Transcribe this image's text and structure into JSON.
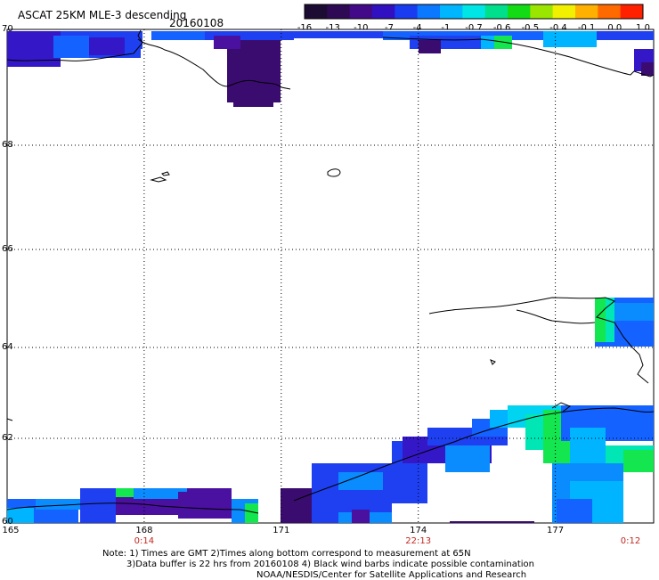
{
  "header": {
    "title": "ASCAT 25KM MLE-3 descending",
    "date": "20160108"
  },
  "colorbar": {
    "labels": [
      "-16",
      "-13",
      "-10",
      "-7",
      "-4",
      "-1",
      "-0.7",
      "-0.6",
      "-0.5",
      "-0.4",
      "-0.1",
      "0.0",
      "1.0"
    ],
    "colors": [
      "#1c0c33",
      "#2e0a55",
      "#420a88",
      "#3010c0",
      "#1a3cf0",
      "#0a78ff",
      "#00b6ff",
      "#00e6e6",
      "#00e08c",
      "#14dc14",
      "#9ae600",
      "#f0f000",
      "#ffb000",
      "#ff6a00",
      "#ff2000"
    ]
  },
  "map": {
    "lat_labels": [
      {
        "value": "70",
        "lat": 70
      },
      {
        "value": "68",
        "lat": 68
      },
      {
        "value": "66",
        "lat": 66
      },
      {
        "value": "64",
        "lat": 64
      },
      {
        "value": "62",
        "lat": 62
      },
      {
        "value": "60",
        "lat": 60
      }
    ],
    "lon_labels": [
      {
        "value": "165",
        "lon": 165
      },
      {
        "value": "168",
        "lon": 168
      },
      {
        "value": "171",
        "lon": 171
      },
      {
        "value": "174",
        "lon": 174
      },
      {
        "value": "177",
        "lon": 177
      }
    ],
    "time_labels": [
      {
        "value": "0:14",
        "lon": 168
      },
      {
        "value": "22:13",
        "lon": 174
      },
      {
        "value": "0:12",
        "lon": 179.1
      }
    ]
  },
  "notes": {
    "line1": "Note: 1) Times are GMT 2)Times along bottom correspond to measurement at 65N",
    "line2": "3)Data buffer is 22 hrs from 20160108 4) Black wind barbs indicate possible contamination",
    "line3": "NOAA/NESDIS/Center for Satellite Applications and Research"
  }
}
